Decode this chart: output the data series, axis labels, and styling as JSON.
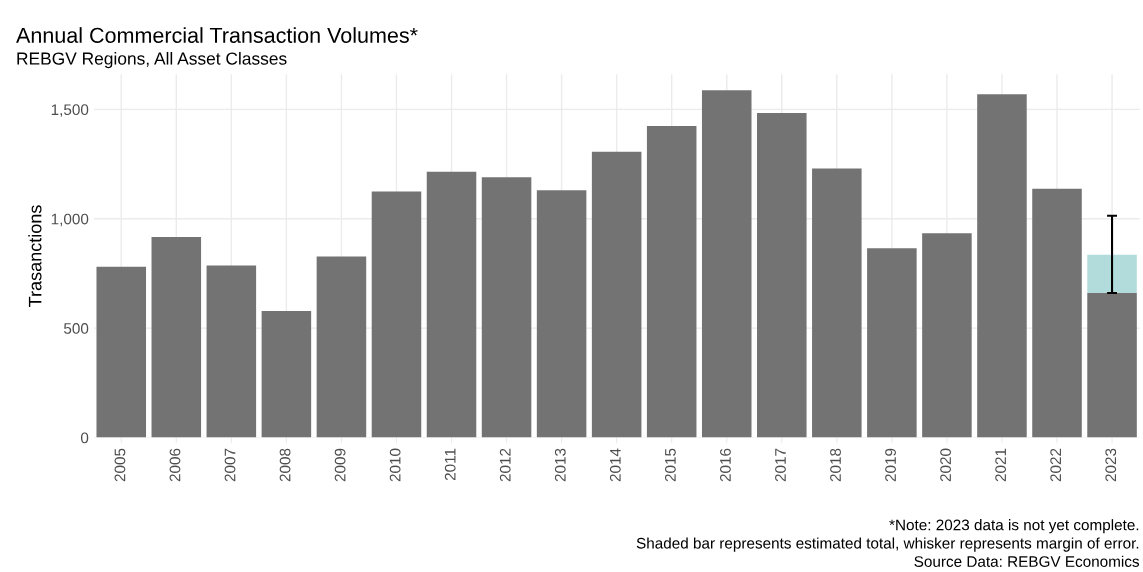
{
  "chart_data": {
    "type": "bar",
    "title": "Annual Commercial Transaction Volumes*",
    "subtitle": "REBGV Regions, All Asset Classes",
    "ylabel": "Trasanctions",
    "categories": [
      "2005",
      "2006",
      "2007",
      "2008",
      "2009",
      "2010",
      "2011",
      "2012",
      "2013",
      "2014",
      "2015",
      "2016",
      "2017",
      "2018",
      "2019",
      "2020",
      "2021",
      "2022",
      "2023"
    ],
    "stacked": true,
    "series": [
      {
        "color": "#737373",
        "values": [
          781,
          917,
          787,
          578,
          828,
          1125,
          1215,
          1190,
          1130,
          1306,
          1424,
          1587,
          1483,
          1230,
          865,
          934,
          1569,
          1137,
          661
        ]
      },
      {
        "color": "#b2dcdc",
        "values": [
          null,
          null,
          null,
          null,
          null,
          null,
          null,
          null,
          null,
          null,
          null,
          null,
          null,
          null,
          null,
          null,
          null,
          null,
          175
        ],
        "errors": [
          null,
          null,
          null,
          null,
          null,
          null,
          null,
          null,
          null,
          null,
          null,
          null,
          null,
          null,
          null,
          null,
          null,
          null,
          [
            661,
            1014
          ]
        ]
      }
    ],
    "ylim": [
      0,
      1660
    ],
    "yticks": [
      0,
      {
        "value": 500,
        "label": "500"
      },
      {
        "value": 1000,
        "label": "1,000"
      },
      {
        "value": 1500,
        "label": "1,500"
      }
    ],
    "grid": true,
    "legend": false,
    "annotations": [
      "*Note: 2023 data is not yet complete.",
      "Shaded bar represents estimated total, whisker represents margin of error.",
      "Source Data: REBGV Economics"
    ]
  }
}
